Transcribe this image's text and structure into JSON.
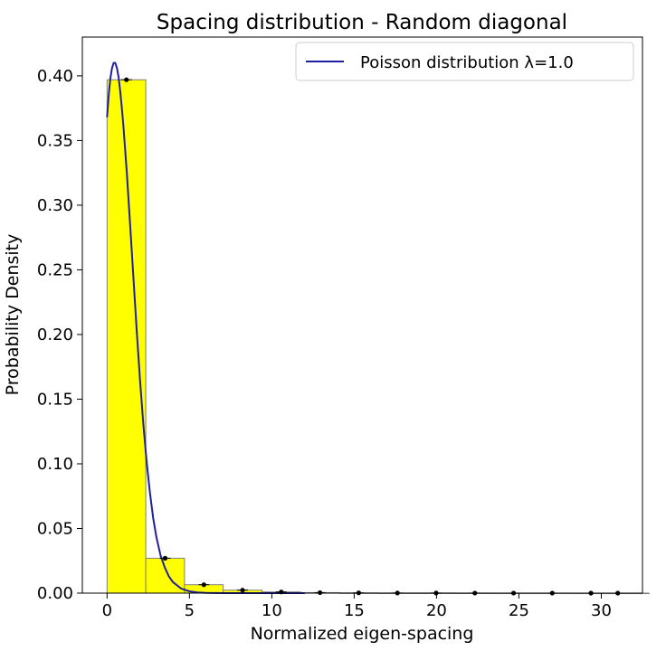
{
  "chart_data": {
    "type": "bar",
    "title": "Spacing distribution - Random diagonal",
    "xlabel": "Normalized eigen-spacing",
    "ylabel": "Probability Density",
    "xlim": [
      -1.5,
      32.5
    ],
    "ylim": [
      0,
      0.43
    ],
    "x_ticks": [
      0,
      5,
      10,
      15,
      20,
      25,
      30
    ],
    "y_ticks": [
      0.0,
      0.05,
      0.1,
      0.15,
      0.2,
      0.25,
      0.3,
      0.35,
      0.4
    ],
    "y_tick_labels": [
      "0.00",
      "0.05",
      "0.10",
      "0.15",
      "0.20",
      "0.25",
      "0.30",
      "0.35",
      "0.40"
    ],
    "bar_color": "#ffff00",
    "bar_edge_color": "#7f7f7f",
    "bin_width": 2.35,
    "bins": [
      {
        "x0": 0.0,
        "x1": 2.35,
        "value": 0.397
      },
      {
        "x0": 2.35,
        "x1": 4.7,
        "value": 0.027
      },
      {
        "x0": 4.7,
        "x1": 7.05,
        "value": 0.0065
      },
      {
        "x0": 7.05,
        "x1": 9.4,
        "value": 0.0023
      },
      {
        "x0": 9.4,
        "x1": 11.75,
        "value": 0.0009
      },
      {
        "x0": 11.75,
        "x1": 14.1,
        "value": 0.0004
      },
      {
        "x0": 14.1,
        "x1": 16.45,
        "value": 0.0002
      },
      {
        "x0": 16.45,
        "x1": 18.8,
        "value": 0.0001
      },
      {
        "x0": 18.8,
        "x1": 21.15,
        "value": 0.0001
      },
      {
        "x0": 21.15,
        "x1": 23.5,
        "value": 5e-05
      },
      {
        "x0": 23.5,
        "x1": 25.85,
        "value": 3e-05
      },
      {
        "x0": 25.85,
        "x1": 28.2,
        "value": 2e-05
      },
      {
        "x0": 28.2,
        "x1": 30.55,
        "value": 1e-05
      },
      {
        "x0": 30.55,
        "x1": 32.9,
        "value": 1e-05
      }
    ],
    "markers": [
      {
        "x": 1.175,
        "y": 0.397
      },
      {
        "x": 3.525,
        "y": 0.027
      },
      {
        "x": 5.875,
        "y": 0.0065
      },
      {
        "x": 8.225,
        "y": 0.0023
      },
      {
        "x": 10.575,
        "y": 0.0009
      },
      {
        "x": 12.925,
        "y": 0.0004
      },
      {
        "x": 15.275,
        "y": 0.0002
      },
      {
        "x": 17.625,
        "y": 0.0001
      },
      {
        "x": 19.975,
        "y": 0.0001
      },
      {
        "x": 22.325,
        "y": 5e-05
      },
      {
        "x": 24.675,
        "y": 3e-05
      },
      {
        "x": 27.025,
        "y": 2e-05
      },
      {
        "x": 29.375,
        "y": 1e-05
      },
      {
        "x": 31.0,
        "y": 1e-05
      }
    ],
    "curve": {
      "name": "Poisson distribution λ=1.0",
      "color": "#1f1f9f",
      "points": [
        [
          0.0,
          0.368
        ],
        [
          0.1,
          0.385
        ],
        [
          0.2,
          0.398
        ],
        [
          0.3,
          0.406
        ],
        [
          0.4,
          0.41
        ],
        [
          0.5,
          0.41
        ],
        [
          0.6,
          0.406
        ],
        [
          0.7,
          0.399
        ],
        [
          0.8,
          0.388
        ],
        [
          0.9,
          0.375
        ],
        [
          1.0,
          0.36
        ],
        [
          1.2,
          0.325
        ],
        [
          1.4,
          0.285
        ],
        [
          1.6,
          0.244
        ],
        [
          1.8,
          0.203
        ],
        [
          2.0,
          0.165
        ],
        [
          2.2,
          0.131
        ],
        [
          2.4,
          0.102
        ],
        [
          2.6,
          0.078
        ],
        [
          2.8,
          0.058
        ],
        [
          3.0,
          0.043
        ],
        [
          3.25,
          0.029
        ],
        [
          3.5,
          0.02
        ],
        [
          3.75,
          0.013
        ],
        [
          4.0,
          0.0085
        ],
        [
          4.5,
          0.0035
        ],
        [
          5.0,
          0.0014
        ],
        [
          5.5,
          0.0005
        ],
        [
          6.0,
          0.0002
        ],
        [
          7.0,
          3e-05
        ],
        [
          8.0,
          0.0
        ],
        [
          9.0,
          0.0
        ],
        [
          10.0,
          0.0
        ],
        [
          11.0,
          0.0
        ],
        [
          12.0,
          0.0
        ]
      ]
    },
    "legend": {
      "position": "upper right",
      "entries": [
        {
          "label": "Poisson distribution λ=1.0",
          "color": "#1f1f9f"
        }
      ]
    }
  }
}
